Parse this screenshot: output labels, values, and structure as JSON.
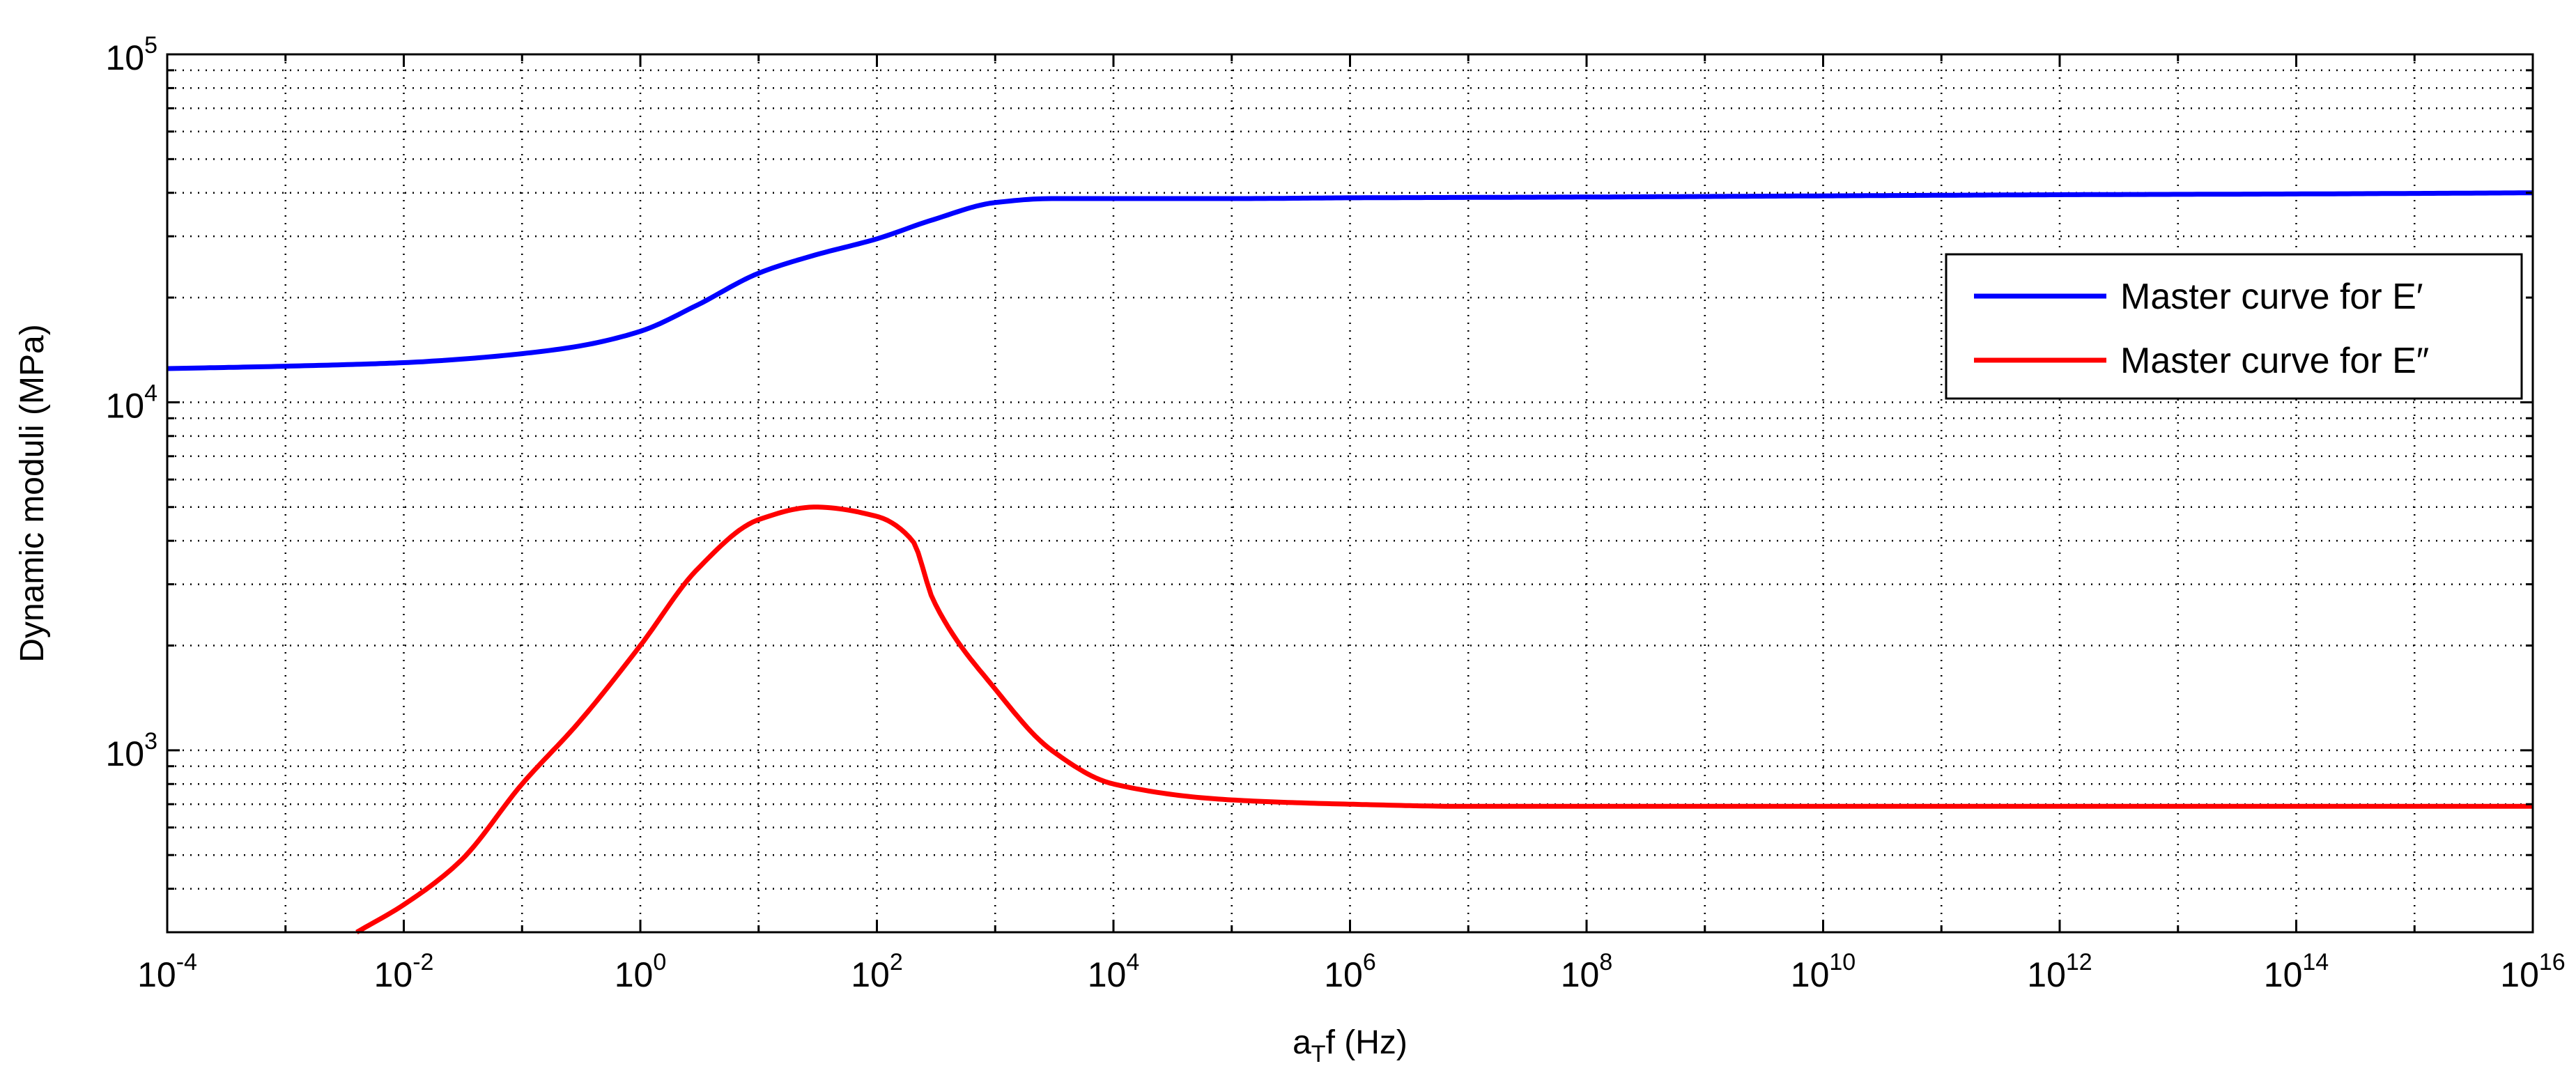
{
  "chart_data": {
    "type": "line",
    "title": "",
    "xlabel": "a_T f (Hz)",
    "xlabel_parts": {
      "main": "a",
      "sub": "T",
      "rest": "f (Hz)"
    },
    "ylabel": "Dynamic moduli (MPa)",
    "x_scale": "log",
    "y_scale": "log",
    "xlim": [
      0.0001,
      1e+16
    ],
    "ylim": [
      300,
      100000
    ],
    "x_ticks": [
      {
        "value": 0.0001,
        "base": "10",
        "exp": "-4"
      },
      {
        "value": 0.01,
        "base": "10",
        "exp": "-2"
      },
      {
        "value": 1.0,
        "base": "10",
        "exp": "0"
      },
      {
        "value": 100.0,
        "base": "10",
        "exp": "2"
      },
      {
        "value": 10000.0,
        "base": "10",
        "exp": "4"
      },
      {
        "value": 1000000.0,
        "base": "10",
        "exp": "6"
      },
      {
        "value": 100000000.0,
        "base": "10",
        "exp": "8"
      },
      {
        "value": 10000000000.0,
        "base": "10",
        "exp": "10"
      },
      {
        "value": 1000000000000.0,
        "base": "10",
        "exp": "12"
      },
      {
        "value": 100000000000000.0,
        "base": "10",
        "exp": "14"
      },
      {
        "value": 1e+16,
        "base": "10",
        "exp": "16"
      }
    ],
    "y_ticks": [
      {
        "value": 1000,
        "base": "10",
        "exp": "3"
      },
      {
        "value": 10000,
        "base": "10",
        "exp": "4"
      },
      {
        "value": 100000,
        "base": "10",
        "exp": "5"
      }
    ],
    "grid": true,
    "legend_position": "upper-right",
    "series": [
      {
        "name": "Master curve for E′",
        "color": "#0000ff",
        "x": [
          0.0001,
          0.001,
          0.01,
          0.03,
          0.1,
          0.3,
          1,
          3,
          10,
          30,
          100,
          300,
          1000,
          3000,
          10000,
          100000,
          1000000,
          10000000,
          100000000,
          10000000000.0,
          1000000000000.0,
          100000000000000.0,
          1e+16
        ],
        "y": [
          12500,
          12700,
          13000,
          13300,
          13800,
          14500,
          16000,
          19000,
          23500,
          26500,
          29500,
          33500,
          37500,
          38500,
          38500,
          38500,
          38700,
          38800,
          38900,
          39200,
          39500,
          39700,
          40000
        ]
      },
      {
        "name": "Master curve for E″",
        "color": "#ff0000",
        "x": [
          0.004,
          0.01,
          0.03,
          0.1,
          0.3,
          1,
          3,
          10,
          30,
          100,
          200,
          300,
          1000,
          3000,
          10000,
          100000,
          1000000,
          10000000,
          100000000,
          10000000000.0,
          1000000000000.0,
          100000000000000.0,
          1e+16
        ],
        "y": [
          300,
          360,
          480,
          800,
          1200,
          2000,
          3300,
          4600,
          5000,
          4700,
          4000,
          2700,
          1500,
          1000,
          800,
          720,
          700,
          690,
          690,
          690,
          690,
          690,
          690
        ]
      }
    ]
  }
}
